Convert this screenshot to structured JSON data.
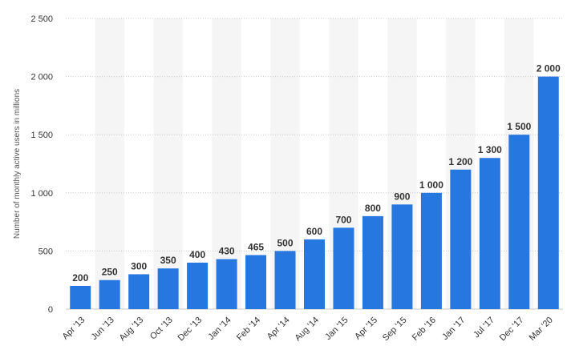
{
  "chart_data": {
    "type": "bar",
    "ylabel": "Number of monthly active users in millions",
    "xlabel": "",
    "categories": [
      "Apr '13",
      "Jun '13",
      "Aug '13",
      "Oct '13",
      "Dec '13",
      "Jan '14",
      "Feb '14",
      "Apr '14",
      "Aug '14",
      "Jan '15",
      "Apr '15",
      "Sep '15",
      "Feb '16",
      "Jan '17",
      "Jul '17",
      "Dec '17",
      "Mar '20"
    ],
    "values": [
      200,
      250,
      300,
      350,
      400,
      430,
      465,
      500,
      600,
      700,
      800,
      900,
      1000,
      1200,
      1300,
      1500,
      2000
    ],
    "value_labels": [
      "200",
      "250",
      "300",
      "350",
      "400",
      "430",
      "465",
      "500",
      "600",
      "700",
      "800",
      "900",
      "1 000",
      "1 200",
      "1 300",
      "1 500",
      "2 000"
    ],
    "ylim": [
      0,
      2500
    ],
    "yticks": [
      0,
      500,
      1000,
      1500,
      2000,
      2500
    ],
    "ytick_labels": [
      "0",
      "500",
      "1 000",
      "1 500",
      "2 000",
      "2 500"
    ],
    "grid": true,
    "legend": "none",
    "colors": {
      "bar": "#2677e0",
      "band": "#f5f5f5"
    }
  }
}
